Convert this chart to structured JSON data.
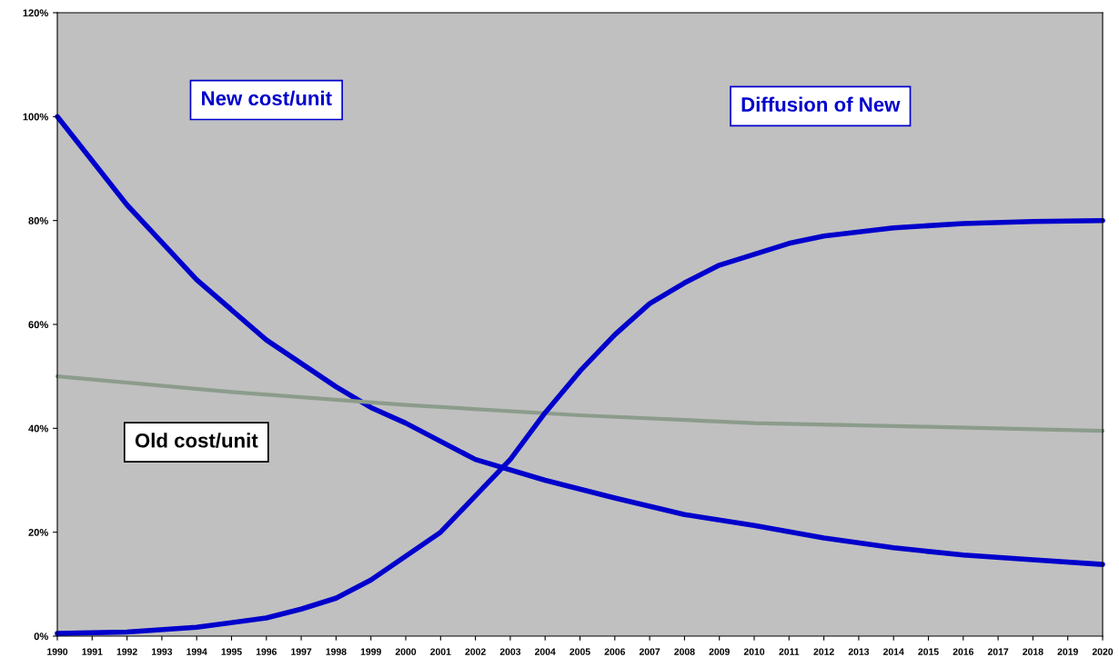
{
  "chart_data": {
    "type": "line",
    "xlim": [
      1990,
      2020
    ],
    "xticks": [
      1990,
      1991,
      1992,
      1993,
      1994,
      1995,
      1996,
      1997,
      1998,
      1999,
      2000,
      2001,
      2002,
      2003,
      2004,
      2005,
      2006,
      2007,
      2008,
      2009,
      2010,
      2011,
      2012,
      2013,
      2014,
      2015,
      2016,
      2017,
      2018,
      2019,
      2020
    ],
    "ylim": [
      0,
      120
    ],
    "yticks": [
      {
        "value": 0,
        "label": "0%"
      },
      {
        "value": 20,
        "label": "20%"
      },
      {
        "value": 40,
        "label": "40%"
      },
      {
        "value": 60,
        "label": "60%"
      },
      {
        "value": 80,
        "label": "80%"
      },
      {
        "value": 100,
        "label": "100%"
      },
      {
        "value": 120,
        "label": "120%"
      }
    ],
    "grid": false,
    "marker": "none",
    "line_style": "solid",
    "series": [
      {
        "color": "#0000cc",
        "x": [
          1990,
          1992,
          1994,
          1996,
          1998,
          1999,
          2000,
          2002,
          2004,
          2006,
          2008,
          2010,
          2012,
          2014,
          2016,
          2018,
          2020
        ],
        "values": [
          100,
          83,
          68.6,
          57,
          48,
          44,
          41,
          34,
          30,
          26.6,
          23.4,
          21.3,
          18.9,
          17,
          15.6,
          14.7,
          13.8
        ]
      },
      {
        "color": "#8c9c8c",
        "x": [
          1990,
          1995,
          2000,
          2005,
          2010,
          2015,
          2020
        ],
        "values": [
          50,
          47,
          44.5,
          42.5,
          41,
          40.3,
          39.5
        ]
      },
      {
        "color": "#0000cc",
        "x": [
          1990,
          1992,
          1994,
          1996,
          1997,
          1998,
          1999,
          2000,
          2001,
          2002,
          2003,
          2004,
          2005,
          2006,
          2007,
          2008,
          2009,
          2010,
          2011,
          2012,
          2014,
          2016,
          2018,
          2020
        ],
        "values": [
          0.5,
          0.8,
          1.7,
          3.5,
          5.2,
          7.3,
          10.8,
          15.4,
          20,
          27,
          34,
          43,
          51,
          58,
          64,
          68,
          71.4,
          73.5,
          75.6,
          77,
          78.6,
          79.4,
          79.8,
          80
        ]
      }
    ],
    "annotations": [
      "New cost/unit",
      "Diffusion of New",
      "Old cost/unit"
    ]
  }
}
